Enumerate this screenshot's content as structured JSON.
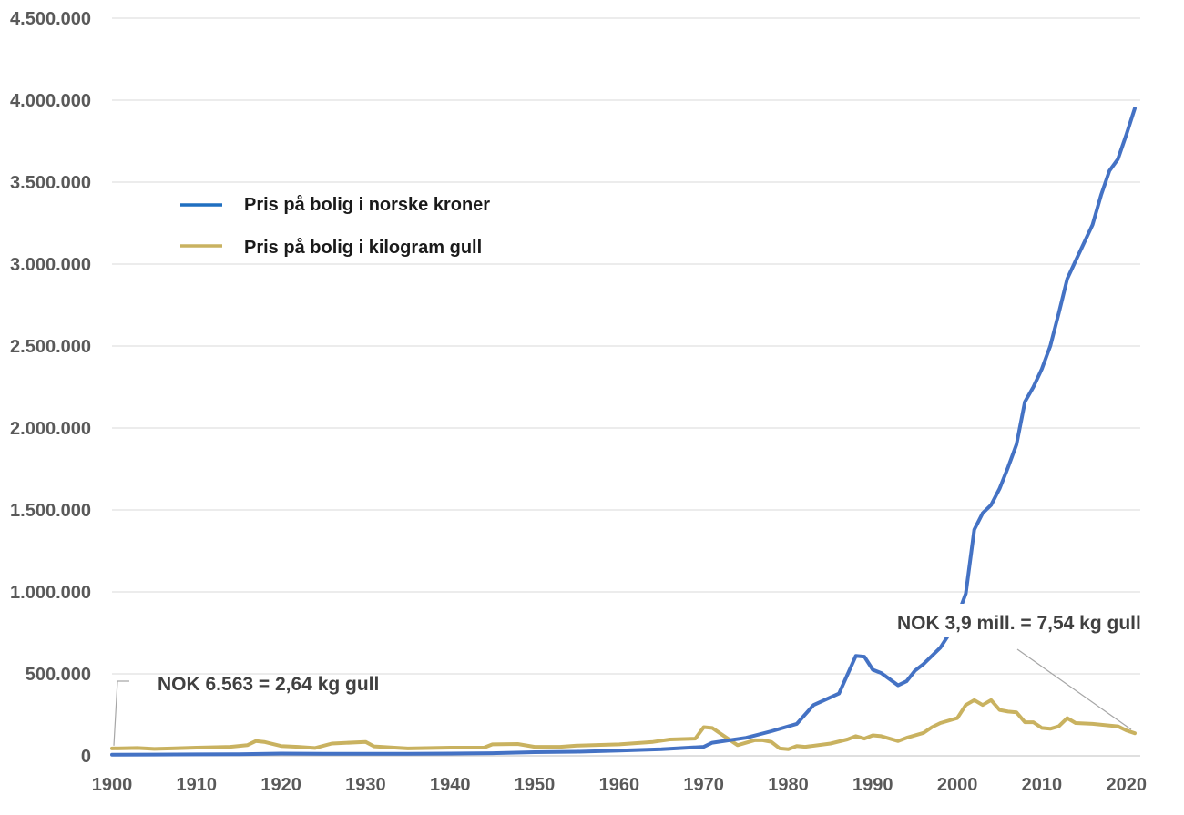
{
  "chart_data": {
    "type": "line",
    "title": "",
    "xlabel": "",
    "ylabel": "",
    "xlim": [
      1900,
      2021
    ],
    "ylim": [
      0,
      4500000
    ],
    "y_ticks": [
      0,
      500000,
      1000000,
      1500000,
      2000000,
      2500000,
      3000000,
      3500000,
      4000000,
      4500000
    ],
    "y_tick_labels": [
      "0",
      "500.000",
      "1.000.000",
      "1.500.000",
      "2.000.000",
      "2.500.000",
      "3.000.000",
      "3.500.000",
      "4.000.000",
      "4.500.000"
    ],
    "x_ticks": [
      1900,
      1910,
      1920,
      1930,
      1940,
      1950,
      1960,
      1970,
      1980,
      1990,
      2000,
      2010,
      2020
    ],
    "x_tick_labels": [
      "1900",
      "1910",
      "1920",
      "1930",
      "1940",
      "1950",
      "1960",
      "1970",
      "1980",
      "1990",
      "2000",
      "2010",
      "2020"
    ],
    "grid": "horizontal",
    "legend_position": "top-left",
    "colors": {
      "nok": "#4472c4",
      "gold": "#c9b260",
      "legend_nok": "#1f6fc0",
      "grid": "#d9d9d9",
      "axis": "#bfbfbf",
      "leader": "#a6a6a6"
    },
    "series": [
      {
        "name": "Pris på bolig i norske kroner",
        "color": "#4472c4",
        "points": [
          [
            1900,
            6563
          ],
          [
            1905,
            8000
          ],
          [
            1910,
            9000
          ],
          [
            1915,
            10000
          ],
          [
            1920,
            14000
          ],
          [
            1925,
            13000
          ],
          [
            1930,
            13000
          ],
          [
            1935,
            12000
          ],
          [
            1940,
            14000
          ],
          [
            1945,
            16000
          ],
          [
            1950,
            22000
          ],
          [
            1955,
            25000
          ],
          [
            1960,
            32000
          ],
          [
            1965,
            40000
          ],
          [
            1970,
            55000
          ],
          [
            1971,
            80000
          ],
          [
            1975,
            110000
          ],
          [
            1978,
            150000
          ],
          [
            1981,
            195000
          ],
          [
            1983,
            310000
          ],
          [
            1986,
            380000
          ],
          [
            1988,
            610000
          ],
          [
            1989,
            605000
          ],
          [
            1990,
            525000
          ],
          [
            1991,
            505000
          ],
          [
            1993,
            430000
          ],
          [
            1994,
            455000
          ],
          [
            1995,
            520000
          ],
          [
            1996,
            560000
          ],
          [
            1998,
            660000
          ],
          [
            1999,
            740000
          ],
          [
            2000,
            850000
          ],
          [
            2001,
            990000
          ],
          [
            2002,
            1380000
          ],
          [
            2003,
            1480000
          ],
          [
            2004,
            1530000
          ],
          [
            2005,
            1630000
          ],
          [
            2006,
            1760000
          ],
          [
            2007,
            1900000
          ],
          [
            2008,
            2160000
          ],
          [
            2009,
            2250000
          ],
          [
            2010,
            2360000
          ],
          [
            2011,
            2500000
          ],
          [
            2012,
            2700000
          ],
          [
            2013,
            2910000
          ],
          [
            2014,
            3020000
          ],
          [
            2015,
            3130000
          ],
          [
            2016,
            3240000
          ],
          [
            2017,
            3420000
          ],
          [
            2018,
            3570000
          ],
          [
            2019,
            3640000
          ],
          [
            2020,
            3790000
          ],
          [
            2021,
            3950000
          ]
        ]
      },
      {
        "name": "Pris på bolig i kilogram gull",
        "color": "#c9b260",
        "points": [
          [
            1900,
            45000
          ],
          [
            1903,
            48000
          ],
          [
            1905,
            42000
          ],
          [
            1907,
            45000
          ],
          [
            1910,
            50000
          ],
          [
            1914,
            55000
          ],
          [
            1916,
            65000
          ],
          [
            1917,
            90000
          ],
          [
            1918,
            85000
          ],
          [
            1920,
            60000
          ],
          [
            1922,
            55000
          ],
          [
            1924,
            48000
          ],
          [
            1926,
            75000
          ],
          [
            1930,
            85000
          ],
          [
            1931,
            58000
          ],
          [
            1935,
            45000
          ],
          [
            1940,
            50000
          ],
          [
            1944,
            50000
          ],
          [
            1945,
            70000
          ],
          [
            1948,
            72000
          ],
          [
            1950,
            55000
          ],
          [
            1953,
            55000
          ],
          [
            1955,
            62000
          ],
          [
            1960,
            70000
          ],
          [
            1964,
            85000
          ],
          [
            1966,
            100000
          ],
          [
            1969,
            105000
          ],
          [
            1970,
            175000
          ],
          [
            1971,
            170000
          ],
          [
            1972,
            135000
          ],
          [
            1974,
            65000
          ],
          [
            1976,
            95000
          ],
          [
            1977,
            95000
          ],
          [
            1978,
            85000
          ],
          [
            1979,
            45000
          ],
          [
            1980,
            40000
          ],
          [
            1981,
            60000
          ],
          [
            1982,
            55000
          ],
          [
            1985,
            75000
          ],
          [
            1987,
            100000
          ],
          [
            1988,
            120000
          ],
          [
            1989,
            105000
          ],
          [
            1990,
            125000
          ],
          [
            1991,
            120000
          ],
          [
            1993,
            90000
          ],
          [
            1994,
            110000
          ],
          [
            1996,
            140000
          ],
          [
            1997,
            175000
          ],
          [
            1998,
            200000
          ],
          [
            2000,
            230000
          ],
          [
            2001,
            310000
          ],
          [
            2002,
            340000
          ],
          [
            2003,
            310000
          ],
          [
            2004,
            340000
          ],
          [
            2005,
            280000
          ],
          [
            2006,
            270000
          ],
          [
            2007,
            265000
          ],
          [
            2008,
            205000
          ],
          [
            2009,
            205000
          ],
          [
            2010,
            170000
          ],
          [
            2011,
            165000
          ],
          [
            2012,
            180000
          ],
          [
            2013,
            230000
          ],
          [
            2014,
            200000
          ],
          [
            2016,
            195000
          ],
          [
            2018,
            185000
          ],
          [
            2019,
            180000
          ],
          [
            2020,
            155000
          ],
          [
            2021,
            138000
          ]
        ]
      }
    ],
    "annotations": [
      {
        "text": "NOK 6.563 = 2,64 kg gull",
        "x": 1900,
        "y": 6563
      },
      {
        "text": "NOK 3,9 mill. = 7,54 kg gull",
        "x": 2021,
        "y": 138000
      }
    ]
  }
}
